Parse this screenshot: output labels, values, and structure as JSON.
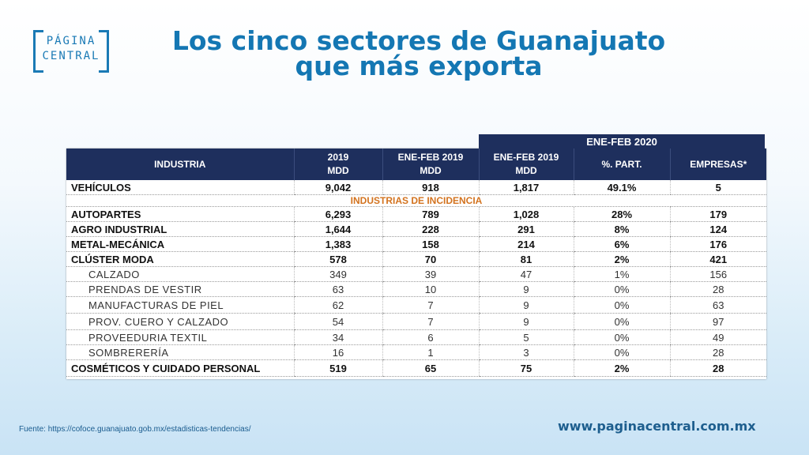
{
  "logo": {
    "line1": "PÁGINA",
    "line2": "CENTRAL"
  },
  "title": {
    "line1": "Los cinco sectores de Guanajuato",
    "line2": "que más exporta"
  },
  "table": {
    "group_header": "ENE-FEB 2020",
    "headers": [
      {
        "l1": "INDUSTRIA",
        "l2": ""
      },
      {
        "l1": "2019",
        "l2": "MDD"
      },
      {
        "l1": "ENE-FEB 2019",
        "l2": "MDD"
      },
      {
        "l1": "ENE-FEB 2019",
        "l2": "MDD"
      },
      {
        "l1": "%. PART.",
        "l2": ""
      },
      {
        "l1": "EMPRESAS*",
        "l2": ""
      }
    ],
    "separator": "INDUSTRIAS DE INCIDENCIA",
    "rows": [
      {
        "type": "bold",
        "cells": [
          "VEHÍCULOS",
          "9,042",
          "918",
          "1,817",
          "49.1%",
          "5"
        ]
      },
      {
        "type": "sep"
      },
      {
        "type": "bold",
        "cells": [
          "AUTOPARTES",
          "6,293",
          "789",
          "1,028",
          "28%",
          "179"
        ]
      },
      {
        "type": "bold",
        "cells": [
          "AGRO INDUSTRIAL",
          "1,644",
          "228",
          "291",
          "8%",
          "124"
        ]
      },
      {
        "type": "bold",
        "cells": [
          "METAL-MECÁNICA",
          "1,383",
          "158",
          "214",
          "6%",
          "176"
        ]
      },
      {
        "type": "bold",
        "cells": [
          "CLÚSTER MODA",
          "578",
          "70",
          "81",
          "2%",
          "421"
        ]
      },
      {
        "type": "sub",
        "cells": [
          "CALZADO",
          "349",
          "39",
          "47",
          "1%",
          "156"
        ]
      },
      {
        "type": "sub",
        "cells": [
          "PRENDAS DE VESTIR",
          "63",
          "10",
          "9",
          "0%",
          "28"
        ]
      },
      {
        "type": "sub tall",
        "cells": [
          "MANUFACTURAS DE PIEL",
          "62",
          "7",
          "9",
          "0%",
          "63"
        ]
      },
      {
        "type": "sub tall",
        "cells": [
          "PROV. CUERO Y CALZADO",
          "54",
          "7",
          "9",
          "0%",
          "97"
        ]
      },
      {
        "type": "sub",
        "cells": [
          "PROVEEDURIA TEXTIL",
          "34",
          "6",
          "5",
          "0%",
          "49"
        ]
      },
      {
        "type": "sub",
        "cells": [
          "SOMBRERERÍA",
          "16",
          "1",
          "3",
          "0%",
          "28"
        ]
      },
      {
        "type": "bold tall",
        "cells": [
          "COSMÉTICOS Y CUIDADO PERSONAL",
          "519",
          "65",
          "75",
          "2%",
          "28"
        ]
      }
    ]
  },
  "footer": {
    "source": "Fuente: https://cofoce.guanajuato.gob.mx/estadisticas-tendencias/",
    "site": "www.paginacentral.com.mx"
  }
}
